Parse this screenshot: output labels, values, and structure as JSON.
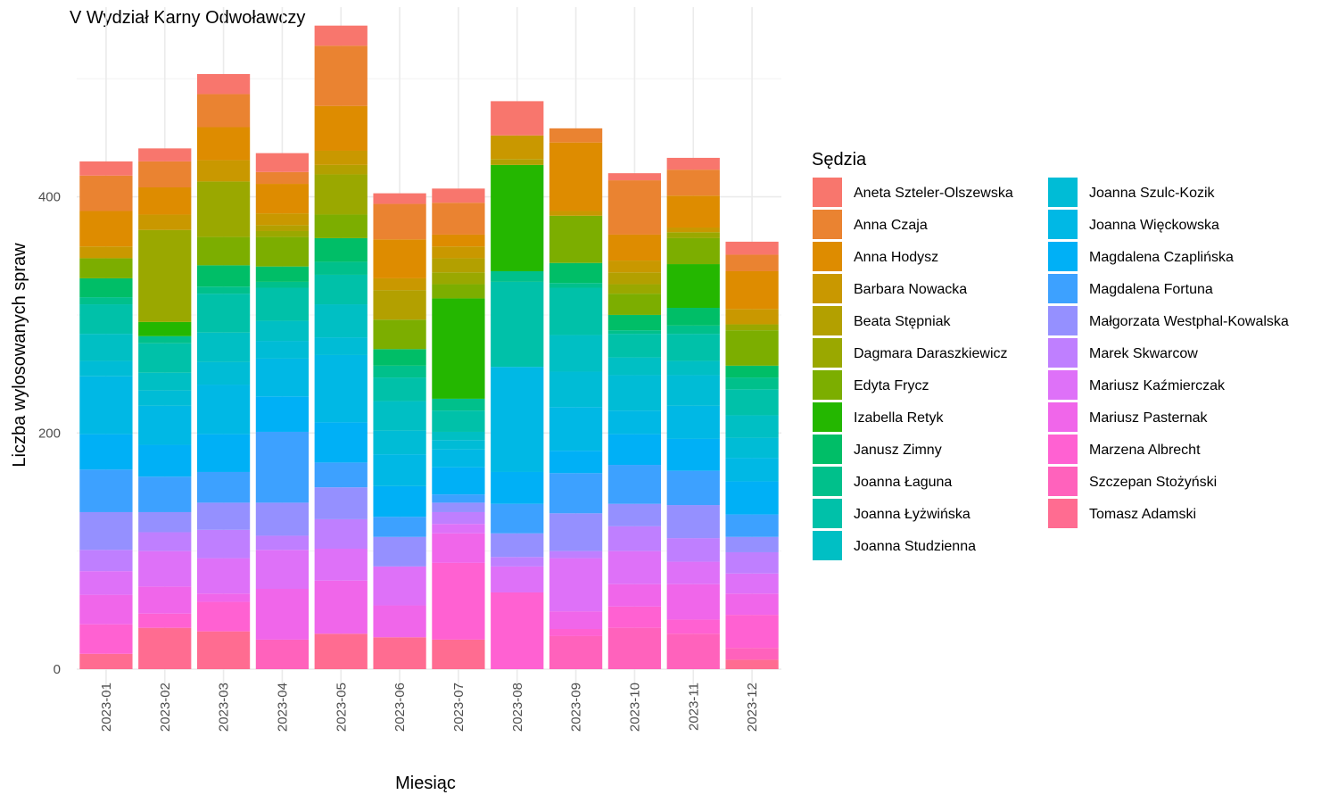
{
  "chart_data": {
    "type": "bar",
    "stacked": true,
    "title": "V Wydział Karny Odwoławczy",
    "xlabel": "Miesiąc",
    "ylabel": "Liczba wylosowanych spraw",
    "ylim": [
      0,
      550
    ],
    "yticks": [
      0,
      200,
      400
    ],
    "grid": true,
    "legend_title": "Sędzia",
    "legend_position": "right",
    "categories": [
      "2023-01",
      "2023-02",
      "2023-03",
      "2023-04",
      "2023-05",
      "2023-06",
      "2023-07",
      "2023-08",
      "2023-09",
      "2023-10",
      "2023-11",
      "2023-12"
    ],
    "series": [
      {
        "name": "Tomasz Adamski",
        "color": "#FF6C91",
        "values": [
          13,
          35,
          32,
          0,
          30,
          27,
          25,
          0,
          0,
          0,
          0,
          8
        ]
      },
      {
        "name": "Szczepan Stożyński",
        "color": "#FF62BC",
        "values": [
          0,
          0,
          0,
          25,
          0,
          0,
          0,
          0,
          28,
          35,
          30,
          10
        ]
      },
      {
        "name": "Marzena Albrecht",
        "color": "#FF61D2",
        "values": [
          25,
          12,
          25,
          0,
          0,
          0,
          65,
          65,
          6,
          18,
          12,
          28
        ]
      },
      {
        "name": "Mariusz Pasternak",
        "color": "#F066EA",
        "values": [
          25,
          23,
          7,
          43,
          45,
          27,
          25,
          0,
          15,
          19,
          30,
          18
        ]
      },
      {
        "name": "Mariusz Kaźmierczak",
        "color": "#DE71F8",
        "values": [
          20,
          30,
          30,
          33,
          27,
          33,
          8,
          22,
          45,
          28,
          19,
          17
        ]
      },
      {
        "name": "Marek Skwarcow",
        "color": "#BF7FFF",
        "values": [
          18,
          16,
          24,
          12,
          25,
          0,
          10,
          8,
          6,
          21,
          20,
          18
        ]
      },
      {
        "name": "Małgorzata Westphal-Kowalska",
        "color": "#9590FF",
        "values": [
          32,
          17,
          23,
          28,
          27,
          25,
          8,
          20,
          32,
          19,
          28,
          13
        ]
      },
      {
        "name": "Magdalena Fortuna",
        "color": "#3DA1FF",
        "values": [
          36,
          30,
          26,
          60,
          21,
          17,
          7,
          25,
          34,
          33,
          29,
          19
        ]
      },
      {
        "name": "Magdalena Czaplińska",
        "color": "#00B0F6",
        "values": [
          30,
          27,
          32,
          30,
          34,
          26,
          23,
          27,
          19,
          26,
          27,
          28
        ]
      },
      {
        "name": "Joanna Więckowska",
        "color": "#00B8E5",
        "values": [
          49,
          33,
          42,
          32,
          57,
          27,
          15,
          89,
          37,
          20,
          28,
          20
        ]
      },
      {
        "name": "Joanna Szulc-Kozik",
        "color": "#00BCD6",
        "values": [
          13,
          13,
          19,
          15,
          15,
          20,
          8,
          0,
          30,
          30,
          26,
          17
        ]
      },
      {
        "name": "Joanna Studzienna",
        "color": "#00BFC4",
        "values": [
          23,
          15,
          25,
          17,
          28,
          25,
          7,
          0,
          31,
          15,
          12,
          19
        ]
      },
      {
        "name": "Joanna Łyżwińska",
        "color": "#00C1A9",
        "values": [
          25,
          25,
          33,
          28,
          25,
          20,
          18,
          72,
          40,
          20,
          23,
          22
        ]
      },
      {
        "name": "Joanna Łaguna",
        "color": "#00C08B",
        "values": [
          6,
          6,
          6,
          5,
          11,
          10,
          10,
          9,
          4,
          3,
          7,
          10
        ]
      },
      {
        "name": "Janusz Zimny",
        "color": "#00BE67",
        "values": [
          16,
          0,
          18,
          13,
          20,
          14,
          0,
          0,
          17,
          13,
          15,
          10
        ]
      },
      {
        "name": "Izabella Retyk",
        "color": "#24B700",
        "values": [
          0,
          12,
          0,
          0,
          0,
          0,
          85,
          90,
          0,
          0,
          37,
          0
        ]
      },
      {
        "name": "Edyta Frycz",
        "color": "#7CAE00",
        "values": [
          17,
          0,
          24,
          25,
          20,
          25,
          12,
          0,
          40,
          18,
          22,
          30
        ]
      },
      {
        "name": "Dagmara Daraszkiewicz",
        "color": "#9AA800",
        "values": [
          0,
          78,
          47,
          5,
          34,
          0,
          10,
          0,
          0,
          8,
          5,
          5
        ]
      },
      {
        "name": "Beata Stępniak",
        "color": "#B3A000",
        "values": [
          0,
          0,
          0,
          5,
          8,
          25,
          12,
          5,
          0,
          10,
          0,
          0
        ]
      },
      {
        "name": "Barbara Nowacka",
        "color": "#C99800",
        "values": [
          10,
          13,
          18,
          10,
          12,
          10,
          10,
          20,
          4,
          10,
          4,
          13
        ]
      },
      {
        "name": "Anna Hodysz",
        "color": "#DE8C00",
        "values": [
          30,
          23,
          28,
          25,
          38,
          33,
          10,
          0,
          58,
          22,
          27,
          32
        ]
      },
      {
        "name": "Anna Czaja",
        "color": "#EA8331",
        "values": [
          30,
          22,
          28,
          10,
          51,
          30,
          27,
          0,
          12,
          46,
          22,
          14
        ]
      },
      {
        "name": "Aneta Szteler-Olszewska",
        "color": "#F8766D",
        "values": [
          12,
          11,
          17,
          16,
          17,
          9,
          12,
          29,
          0,
          6,
          10,
          11
        ]
      }
    ],
    "legend_entries": [
      {
        "name": "Aneta Szteler-Olszewska",
        "color": "#F8766D"
      },
      {
        "name": "Anna Czaja",
        "color": "#EA8331"
      },
      {
        "name": "Anna Hodysz",
        "color": "#DE8C00"
      },
      {
        "name": "Barbara Nowacka",
        "color": "#C99800"
      },
      {
        "name": "Beata Stępniak",
        "color": "#B3A000"
      },
      {
        "name": "Dagmara Daraszkiewicz",
        "color": "#9AA800"
      },
      {
        "name": "Edyta Frycz",
        "color": "#7CAE00"
      },
      {
        "name": "Izabella Retyk",
        "color": "#24B700"
      },
      {
        "name": "Janusz Zimny",
        "color": "#00BE67"
      },
      {
        "name": "Joanna Łaguna",
        "color": "#00C08B"
      },
      {
        "name": "Joanna Łyżwińska",
        "color": "#00C1A9"
      },
      {
        "name": "Joanna Studzienna",
        "color": "#00BFC4"
      },
      {
        "name": "Joanna Szulc-Kozik",
        "color": "#00BCD6"
      },
      {
        "name": "Joanna Więckowska",
        "color": "#00B8E5"
      },
      {
        "name": "Magdalena Czaplińska",
        "color": "#00B0F6"
      },
      {
        "name": "Magdalena Fortuna",
        "color": "#3DA1FF"
      },
      {
        "name": "Małgorzata Westphal-Kowalska",
        "color": "#9590FF"
      },
      {
        "name": "Marek Skwarcow",
        "color": "#BF7FFF"
      },
      {
        "name": "Mariusz Kaźmierczak",
        "color": "#DE71F8"
      },
      {
        "name": "Mariusz Pasternak",
        "color": "#F066EA"
      },
      {
        "name": "Marzena Albrecht",
        "color": "#FF61D2"
      },
      {
        "name": "Szczepan Stożyński",
        "color": "#FF62BC"
      },
      {
        "name": "Tomasz Adamski",
        "color": "#FF6C91"
      }
    ]
  }
}
